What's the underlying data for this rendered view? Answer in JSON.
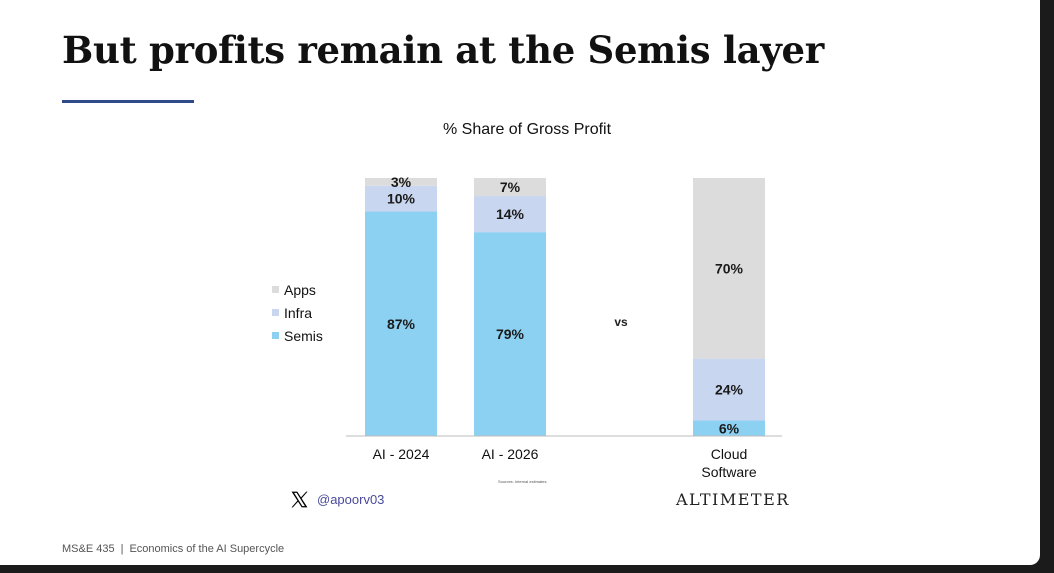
{
  "slide": {
    "title": "But profits remain at the Semis layer",
    "social_handle": "@apoorv03",
    "brand": "ALTIMETER",
    "source_note": "Sources: Internal estimates",
    "footer": {
      "course": "MS&E 435",
      "separator": "|",
      "subtitle": "Economics of the AI Supercycle"
    },
    "colors": {
      "accent_rule": "#2e4a8a",
      "handle": "#4a4a9a"
    }
  },
  "chart_data": {
    "type": "bar",
    "stacked": true,
    "title": "% Share of Gross Profit",
    "categories": [
      "AI - 2024",
      "AI - 2026",
      "Cloud Software"
    ],
    "series": [
      {
        "name": "Semis",
        "color": "#8cd0f2",
        "values": [
          87,
          79,
          6
        ],
        "labels": [
          "87%",
          "79%",
          "6%"
        ]
      },
      {
        "name": "Infra",
        "color": "#c9d6f0",
        "values": [
          10,
          14,
          24
        ],
        "labels": [
          "10%",
          "14%",
          "24%"
        ]
      },
      {
        "name": "Apps",
        "color": "#dcdcdc",
        "values": [
          3,
          7,
          70
        ],
        "labels": [
          "3%",
          "7%",
          "70%"
        ]
      }
    ],
    "legend_order": [
      "Apps",
      "Infra",
      "Semis"
    ],
    "legend_position": "left",
    "separator_text": "vs",
    "ylim": [
      0,
      100
    ],
    "xlabel": "",
    "ylabel": "",
    "grid": false
  }
}
